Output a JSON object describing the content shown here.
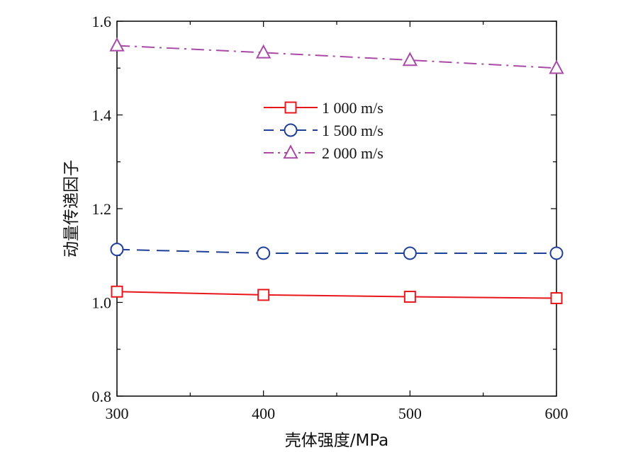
{
  "chart_data": {
    "type": "line",
    "title": "",
    "xlabel": "壳体强度/MPa",
    "ylabel": "动量传递因子",
    "x": [
      300,
      400,
      500,
      600
    ],
    "xlim": [
      300,
      600
    ],
    "ylim": [
      0.8,
      1.6
    ],
    "xticks": [
      300,
      400,
      500,
      600
    ],
    "yticks": [
      0.8,
      1.0,
      1.2,
      1.4,
      1.6
    ],
    "xtick_labels": [
      "300",
      "400",
      "500",
      "600"
    ],
    "ytick_labels": [
      "0.8",
      "1.0",
      "1.2",
      "1.4",
      "1.6"
    ],
    "grid": false,
    "legend_position": "top-center",
    "series": [
      {
        "name": "1 000 m/s",
        "values": [
          1.023,
          1.016,
          1.012,
          1.009
        ],
        "color": "#e8171c",
        "marker": "square",
        "dash": "solid"
      },
      {
        "name": "1 500 m/s",
        "values": [
          1.113,
          1.105,
          1.105,
          1.105
        ],
        "color": "#1f3f99",
        "marker": "circle",
        "dash": "dashed"
      },
      {
        "name": "2 000 m/s",
        "values": [
          1.548,
          1.533,
          1.517,
          1.5
        ],
        "color": "#a94aa6",
        "marker": "triangle",
        "dash": "dashdot"
      }
    ]
  }
}
